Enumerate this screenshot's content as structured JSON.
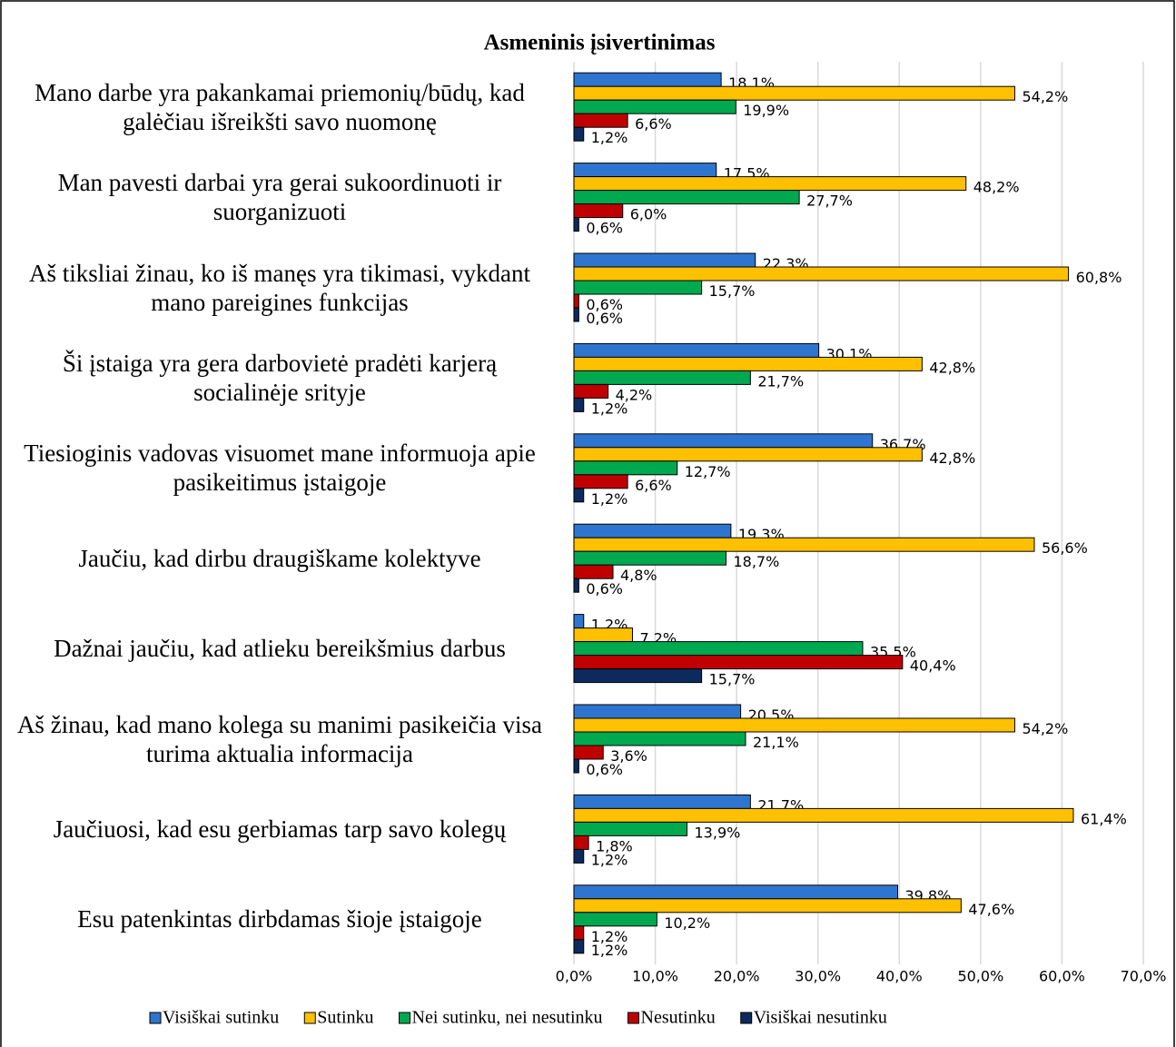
{
  "chart_data": {
    "type": "bar",
    "orientation": "horizontal",
    "title": "Asmeninis įsivertinimas",
    "categories": [
      "Mano darbe yra pakankamai priemonių/būdų, kad galėčiau išreikšti savo nuomonę",
      "Man pavesti darbai yra gerai sukoordinuoti ir suorganizuoti",
      "Aš tiksliai žinau, ko iš manęs yra tikimasi, vykdant mano pareigines funkcijas",
      "Ši įstaiga yra gera darbovietė pradėti karjerą socialinėje srityje",
      "Tiesioginis vadovas visuomet mane informuoja apie pasikeitimus įstaigoje",
      "Jaučiu, kad dirbu draugiškame kolektyve",
      "Dažnai jaučiu, kad atlieku bereikšmius darbus",
      "Aš žinau, kad mano kolega su manimi pasikeičia visa turima aktualia informacija",
      "Jaučiuosi, kad esu gerbiamas tarp savo kolegų",
      "Esu patenkintas dirbdamas šioje įstaigoje"
    ],
    "series": [
      {
        "name": "Visiškai sutinku",
        "color": "#2e75d0",
        "values": [
          18.1,
          17.5,
          22.3,
          30.1,
          36.7,
          19.3,
          1.2,
          20.5,
          21.7,
          39.8
        ],
        "value_labels": [
          "18,1%",
          "17,5%",
          "22,3%",
          "30,1%",
          "36,7%",
          "19,3%",
          "1,2%",
          "20,5%",
          "21,7%",
          "39,8%"
        ]
      },
      {
        "name": "Sutinku",
        "color": "#ffc000",
        "values": [
          54.2,
          48.2,
          60.8,
          42.8,
          42.8,
          56.6,
          7.2,
          54.2,
          61.4,
          47.6
        ],
        "value_labels": [
          "54,2%",
          "48,2%",
          "60,8%",
          "42,8%",
          "42,8%",
          "56,6%",
          "7,2%",
          "54,2%",
          "61,4%",
          "47,6%"
        ]
      },
      {
        "name": "Nei sutinku, nei nesutinku",
        "color": "#00a850",
        "values": [
          19.9,
          27.7,
          15.7,
          21.7,
          12.7,
          18.7,
          35.5,
          21.1,
          13.9,
          10.2
        ],
        "value_labels": [
          "19,9%",
          "27,7%",
          "15,7%",
          "21,7%",
          "12,7%",
          "18,7%",
          "35,5%",
          "21,1%",
          "13,9%",
          "10,2%"
        ]
      },
      {
        "name": "Nesutinku",
        "color": "#c00000",
        "values": [
          6.6,
          6.0,
          0.6,
          4.2,
          6.6,
          4.8,
          40.4,
          3.6,
          1.8,
          1.2
        ],
        "value_labels": [
          "6,6%",
          "6,0%",
          "0,6%",
          "4,2%",
          "6,6%",
          "4,8%",
          "40,4%",
          "3,6%",
          "1,8%",
          "1,2%"
        ]
      },
      {
        "name": "Visiškai nesutinku",
        "color": "#0c2a5e",
        "values": [
          1.2,
          0.6,
          0.6,
          1.2,
          1.2,
          0.6,
          15.7,
          0.6,
          1.2,
          1.2
        ],
        "value_labels": [
          "1,2%",
          "0,6%",
          "0,6%",
          "1,2%",
          "1,2%",
          "0,6%",
          "15,7%",
          "0,6%",
          "1,2%",
          "1,2%"
        ]
      }
    ],
    "xlim": [
      0,
      70
    ],
    "xticks": [
      {
        "value": 0,
        "label": "0,0%"
      },
      {
        "value": 10,
        "label": "10,0%"
      },
      {
        "value": 20,
        "label": "20,0%"
      },
      {
        "value": 30,
        "label": "30,0%"
      },
      {
        "value": 40,
        "label": "40,0%"
      },
      {
        "value": 50,
        "label": "50,0%"
      },
      {
        "value": 60,
        "label": "60,0%"
      },
      {
        "value": 70,
        "label": "70,0%"
      }
    ],
    "grid": true,
    "legend": "bottom"
  }
}
